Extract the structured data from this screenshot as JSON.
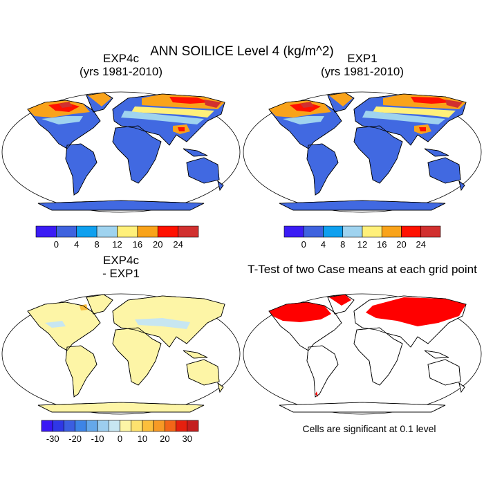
{
  "title": "ANN SOILICE Level 4 (kg/m^2)",
  "panels": [
    {
      "title": [
        "EXP4c",
        "(yrs 1981-2010)"
      ]
    },
    {
      "title": [
        "EXP1",
        "(yrs 1981-2010)"
      ]
    },
    {
      "title": [
        "EXP4c",
        "- EXP1"
      ]
    },
    {
      "title": [
        "T-Test of two Case means at each grid point"
      ]
    }
  ],
  "colorbars": [
    {
      "colors": [
        "#3b1cf5",
        "#3f63df",
        "#0fa0ef",
        "#9fd3ef",
        "#fff07a",
        "#f9a31a",
        "#ff1100",
        "#d1302f"
      ],
      "lim": [
        -4,
        28
      ],
      "ticks": [
        0,
        4,
        8,
        12,
        16,
        20,
        24
      ]
    },
    {
      "colors": [
        "#3b1cf5",
        "#3f63df",
        "#0fa0ef",
        "#9fd3ef",
        "#fff07a",
        "#f9a31a",
        "#ff1100",
        "#d1302f"
      ],
      "lim": [
        -4,
        28
      ],
      "ticks": [
        0,
        4,
        8,
        12,
        16,
        20,
        24
      ]
    },
    {
      "colors": [
        "#3a18f4",
        "#2f37e6",
        "#3b5ee1",
        "#3d84e6",
        "#65a8ea",
        "#9ccdee",
        "#c7e6f1",
        "#fcf5a6",
        "#fde26f",
        "#fbbf3c",
        "#f79a25",
        "#f26618",
        "#e5200e",
        "#c41e1e"
      ],
      "lim": [
        -35,
        35
      ],
      "ticks": [
        -30,
        -20,
        -10,
        0,
        10,
        20,
        30
      ]
    }
  ],
  "note": "Cells are significant at 0.1 level"
}
